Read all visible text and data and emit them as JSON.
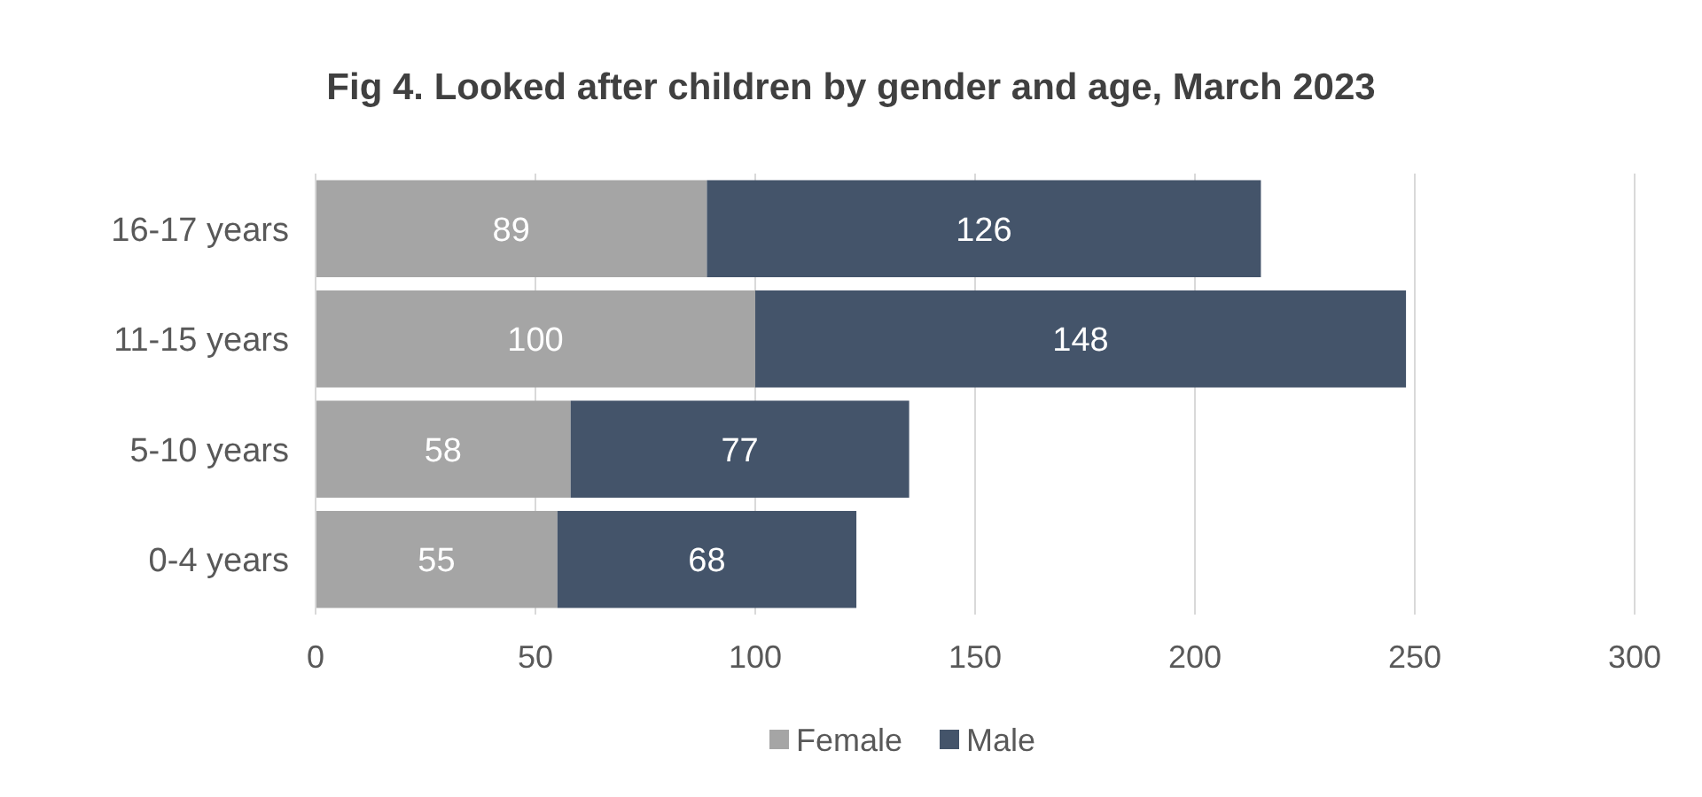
{
  "chart_data": {
    "type": "bar",
    "orientation": "horizontal",
    "stacked": true,
    "title": "Fig 4. Looked after children by gender and age, March 2023",
    "categories": [
      "16-17 years",
      "11-15 years",
      "5-10 years",
      "0-4 years"
    ],
    "series": [
      {
        "name": "Female",
        "color": "#a5a5a5",
        "values": [
          89,
          100,
          58,
          55
        ]
      },
      {
        "name": "Male",
        "color": "#44546a",
        "values": [
          126,
          148,
          77,
          68
        ]
      }
    ],
    "xlim": [
      0,
      300
    ],
    "xticks": [
      0,
      50,
      100,
      150,
      200,
      250,
      300
    ],
    "grid": "x",
    "legend": "bottom",
    "data_labels": true
  }
}
